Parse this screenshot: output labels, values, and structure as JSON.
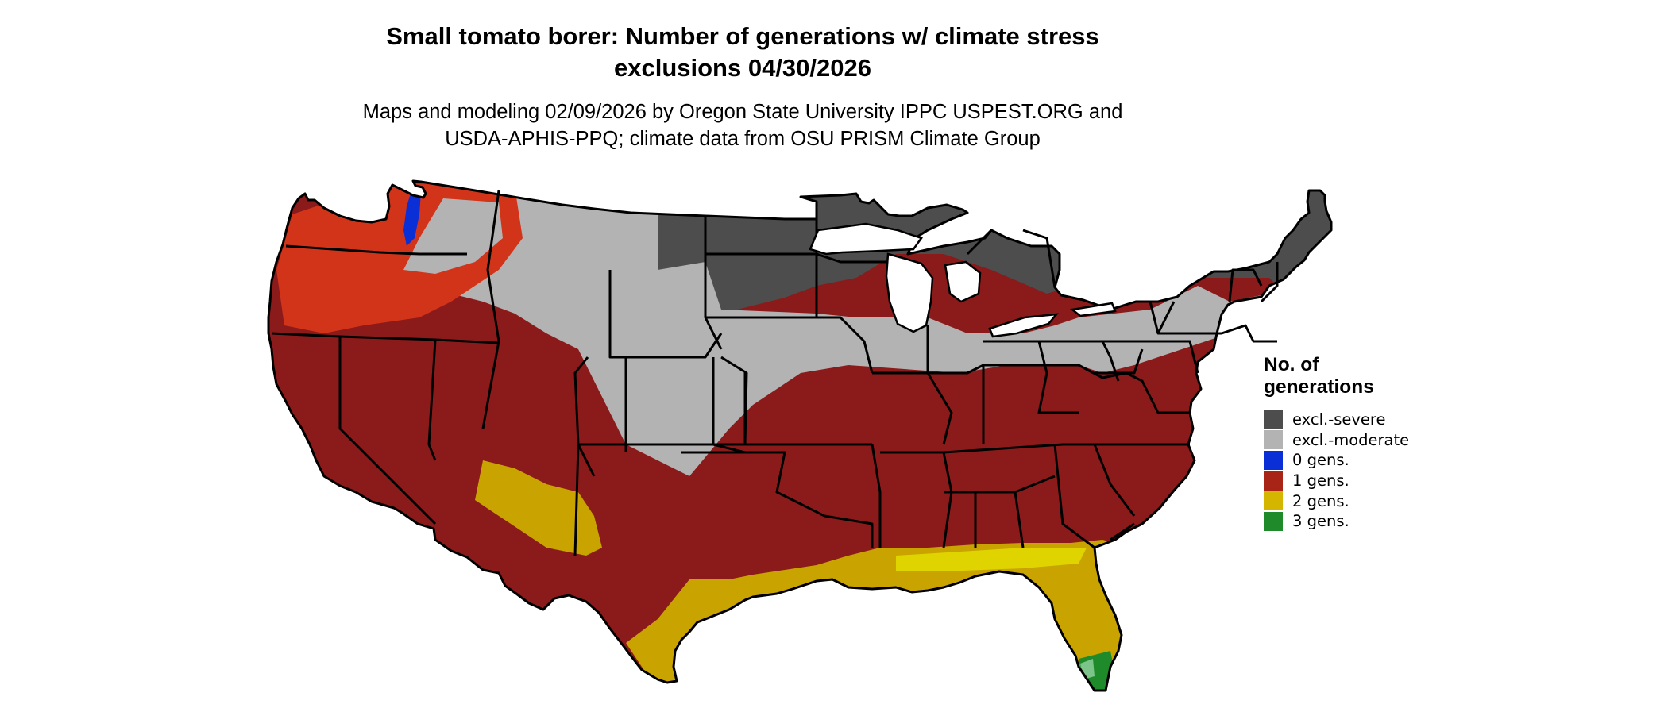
{
  "map": {
    "title_line1": "Small tomato borer: Number of generations w/ climate stress",
    "title_line2": "exclusions 04/30/2026",
    "subtitle_line1": "Maps and modeling 02/09/2026 by Oregon State University IPPC USPEST.ORG and",
    "subtitle_line2": "USDA-APHIS-PPQ; climate data from OSU PRISM Climate Group"
  },
  "legend": {
    "title_line1": "No. of",
    "title_line2": "generations",
    "items": [
      {
        "label": "excl.-severe",
        "color": "#4d4d4d"
      },
      {
        "label": "excl.-moderate",
        "color": "#b3b3b3"
      },
      {
        "label": "0 gens.",
        "color": "#0a2fd6"
      },
      {
        "label": "1 gens.",
        "color": "#a82416"
      },
      {
        "label": "2 gens.",
        "color": "#d4b600"
      },
      {
        "label": "3 gens.",
        "color": "#1f8a2a"
      }
    ]
  },
  "colors": {
    "severe": "#4d4d4d",
    "moderate": "#b3b3b3",
    "zero": "#0a2fd6",
    "one": "#8b1a1a",
    "one_bright": "#d2341a",
    "two": "#c9a400",
    "two_bright": "#e0d400",
    "three": "#1f8a2a",
    "three_light": "#7cc48a",
    "border": "#000000"
  }
}
